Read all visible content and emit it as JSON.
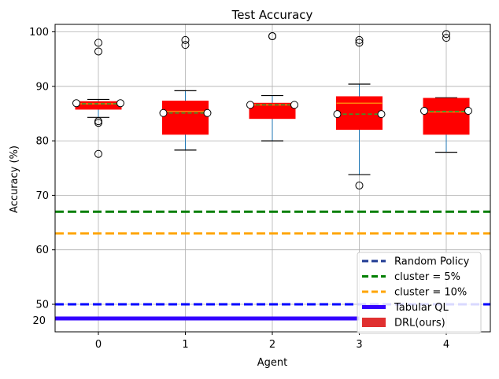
{
  "chart_data": {
    "type": "box",
    "title": "Test Accuracy",
    "xlabel": "Agent",
    "ylabel": "Accuracy (%)",
    "grid": true,
    "legend_position": "bottom-right",
    "y_ticks": [
      50,
      60,
      70,
      80,
      90,
      100
    ],
    "y_break_label": "20",
    "categories": [
      "0",
      "1",
      "2",
      "3",
      "4"
    ],
    "boxes": [
      {
        "agent": "0",
        "q1": 85.8,
        "median": 86.8,
        "mean": 86.8,
        "q3": 87.2,
        "whisker_low": 84.3,
        "whisker_high": 87.6,
        "outliers": [
          98.0,
          96.4,
          83.6,
          83.3,
          77.6
        ],
        "endpoints": [
          86.9,
          86.9
        ]
      },
      {
        "agent": "1",
        "q1": 81.2,
        "median": 85.4,
        "mean": 85.1,
        "q3": 87.3,
        "whisker_low": 78.3,
        "whisker_high": 89.2,
        "outliers": [
          98.5,
          97.6
        ],
        "endpoints": [
          85.1,
          85.1
        ]
      },
      {
        "agent": "2",
        "q1": 84.1,
        "median": 86.6,
        "mean": 86.6,
        "q3": 86.9,
        "whisker_low": 80.0,
        "whisker_high": 88.3,
        "outliers": [
          99.2,
          99.2
        ],
        "endpoints": [
          86.6,
          86.6
        ]
      },
      {
        "agent": "3",
        "q1": 82.1,
        "median": 86.9,
        "mean": 84.9,
        "q3": 88.1,
        "whisker_low": 73.8,
        "whisker_high": 90.4,
        "outliers": [
          98.5,
          98.0,
          71.8
        ],
        "endpoints": [
          84.9,
          84.9
        ]
      },
      {
        "agent": "4",
        "q1": 81.2,
        "median": 85.3,
        "mean": 85.4,
        "q3": 87.8,
        "whisker_low": 77.9,
        "whisker_high": 87.9,
        "outliers": [
          99.6,
          98.9
        ],
        "endpoints": [
          85.5,
          85.5
        ]
      }
    ],
    "reference_lines": [
      {
        "name": "Random Policy",
        "value": 50,
        "color": "#0000ff",
        "style": "dashed"
      },
      {
        "name": "cluster = 5%",
        "value": 67,
        "color": "#007f00",
        "style": "dashed"
      },
      {
        "name": "cluster = 10%",
        "value": 63,
        "color": "#ffa500",
        "style": "dashed"
      },
      {
        "name": "Tabular QL",
        "value": 20,
        "color": "#3300ff",
        "style": "solid"
      }
    ],
    "legend": [
      {
        "label": "Random Policy",
        "kind": "dashed",
        "color": "#1f3a93"
      },
      {
        "label": "cluster = 5%",
        "kind": "dashed",
        "color": "#007f00"
      },
      {
        "label": "cluster = 10%",
        "kind": "dashed",
        "color": "#ffa500"
      },
      {
        "label": "Tabular QL",
        "kind": "solid",
        "color": "#3300ff"
      },
      {
        "label": "DRL(ours)",
        "kind": "patch",
        "color": "#e03030"
      }
    ],
    "colors": {
      "box_fill": "#ff0000",
      "median": "#ff7f0e",
      "mean": "#2ca02c",
      "whisker": "#1f77b4",
      "grid": "#b0b0b0"
    }
  }
}
